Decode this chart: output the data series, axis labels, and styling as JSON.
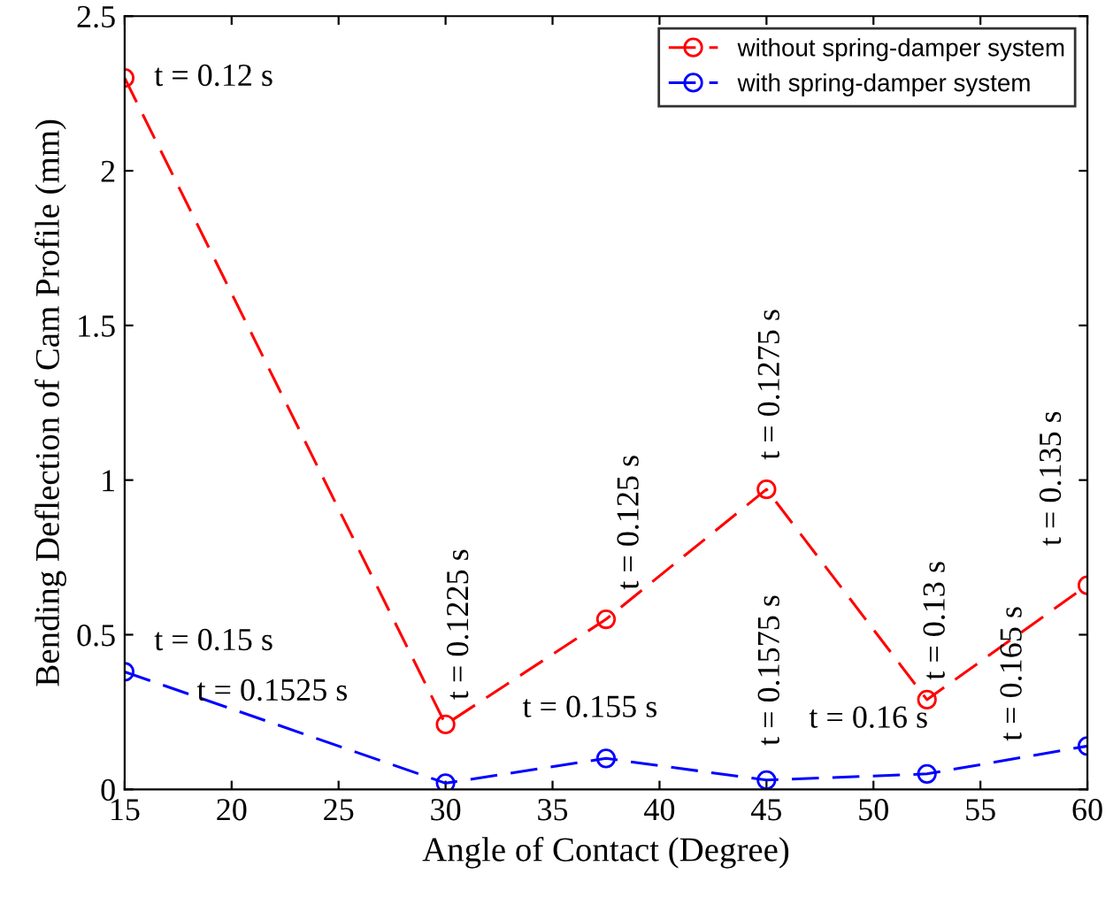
{
  "chart_data": {
    "type": "line",
    "xlabel": "Angle of Contact (Degree)",
    "ylabel": "Bending Deflection of Cam Profile (mm)",
    "x": [
      15,
      30,
      37.5,
      45,
      52.5,
      60
    ],
    "series": [
      {
        "name": "without spring-damper system",
        "color": "#ff0000",
        "values": [
          2.3,
          0.21,
          0.55,
          0.97,
          0.29,
          0.66
        ]
      },
      {
        "name": "with spring-damper system",
        "color": "#0000ff",
        "values": [
          0.38,
          0.02,
          0.1,
          0.03,
          0.05,
          0.14
        ]
      }
    ],
    "xlim": [
      15,
      60
    ],
    "ylim": [
      0,
      2.5
    ],
    "xticks": [
      15,
      20,
      25,
      30,
      35,
      40,
      45,
      50,
      55,
      60
    ],
    "yticks": [
      0,
      0.5,
      1,
      1.5,
      2,
      2.5
    ],
    "marker": "circle",
    "line_style": "dashed",
    "legend": "top right",
    "grid": false,
    "annotations": [
      {
        "text": "t = 0.12 s",
        "x": 15,
        "y": 2.3
      },
      {
        "text": "t = 0.1225 s",
        "x": 30,
        "y": 0.21
      },
      {
        "text": "t = 0.125 s",
        "x": 37.5,
        "y": 0.55
      },
      {
        "text": "t = 0.1275 s",
        "x": 45,
        "y": 0.97
      },
      {
        "text": "t = 0.13 s",
        "x": 52.5,
        "y": 0.29
      },
      {
        "text": "t = 0.135 s",
        "x": 60,
        "y": 0.66
      },
      {
        "text": "t = 0.15 s",
        "x": 15,
        "y": 0.38
      },
      "t = 0.1525 s",
      {
        "text": "t = 0.155 s",
        "x": 37.5,
        "y": 0.1
      },
      {
        "text": "t = 0.1575 s",
        "x": 45,
        "y": 0.03
      },
      {
        "text": "t = 0.16 s",
        "x": 52.5,
        "y": 0.05
      },
      {
        "text": "t = 0.165 s",
        "x": 60,
        "y": 0.14
      }
    ]
  }
}
